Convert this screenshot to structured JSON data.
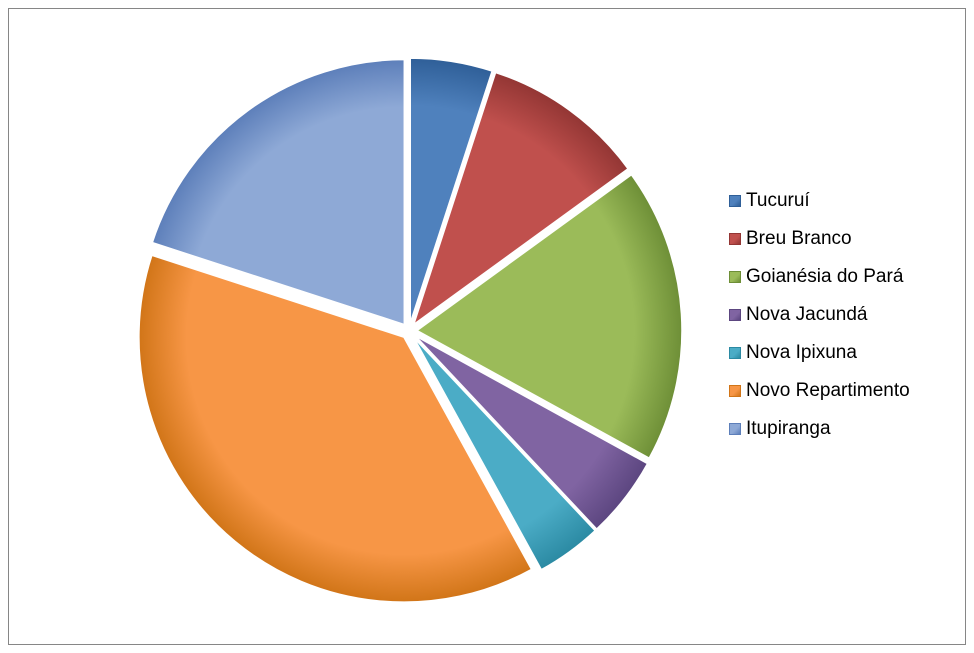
{
  "chart_data": {
    "type": "pie",
    "title": "",
    "legend_position": "right",
    "series": [
      {
        "values": [
          5,
          10,
          18,
          5,
          4,
          38,
          20
        ],
        "categories": [
          "Tucuruí",
          "Breu Branco",
          "Goianésia do Pará",
          "Nova Jacundá",
          "Nova Ipixuna",
          "Novo Repartimento",
          "Itupiranga"
        ]
      }
    ],
    "colors": [
      "#4F81BD",
      "#C0504D",
      "#9BBB59",
      "#8064A2",
      "#4BACC6",
      "#F79646",
      "#8EA9D6"
    ],
    "dark_colors": [
      "#2F5F98",
      "#933634",
      "#6E8F37",
      "#5C4680",
      "#2B8AA3",
      "#D17518",
      "#5D7FBA"
    ]
  },
  "legend": {
    "items": [
      {
        "label": "Tucuruí"
      },
      {
        "label": "Breu Branco"
      },
      {
        "label": "Goianésia do Pará"
      },
      {
        "label": "Nova Jacundá"
      },
      {
        "label": "Nova Ipixuna"
      },
      {
        "label": "Novo Repartimento"
      },
      {
        "label": "Itupiranga"
      }
    ]
  }
}
